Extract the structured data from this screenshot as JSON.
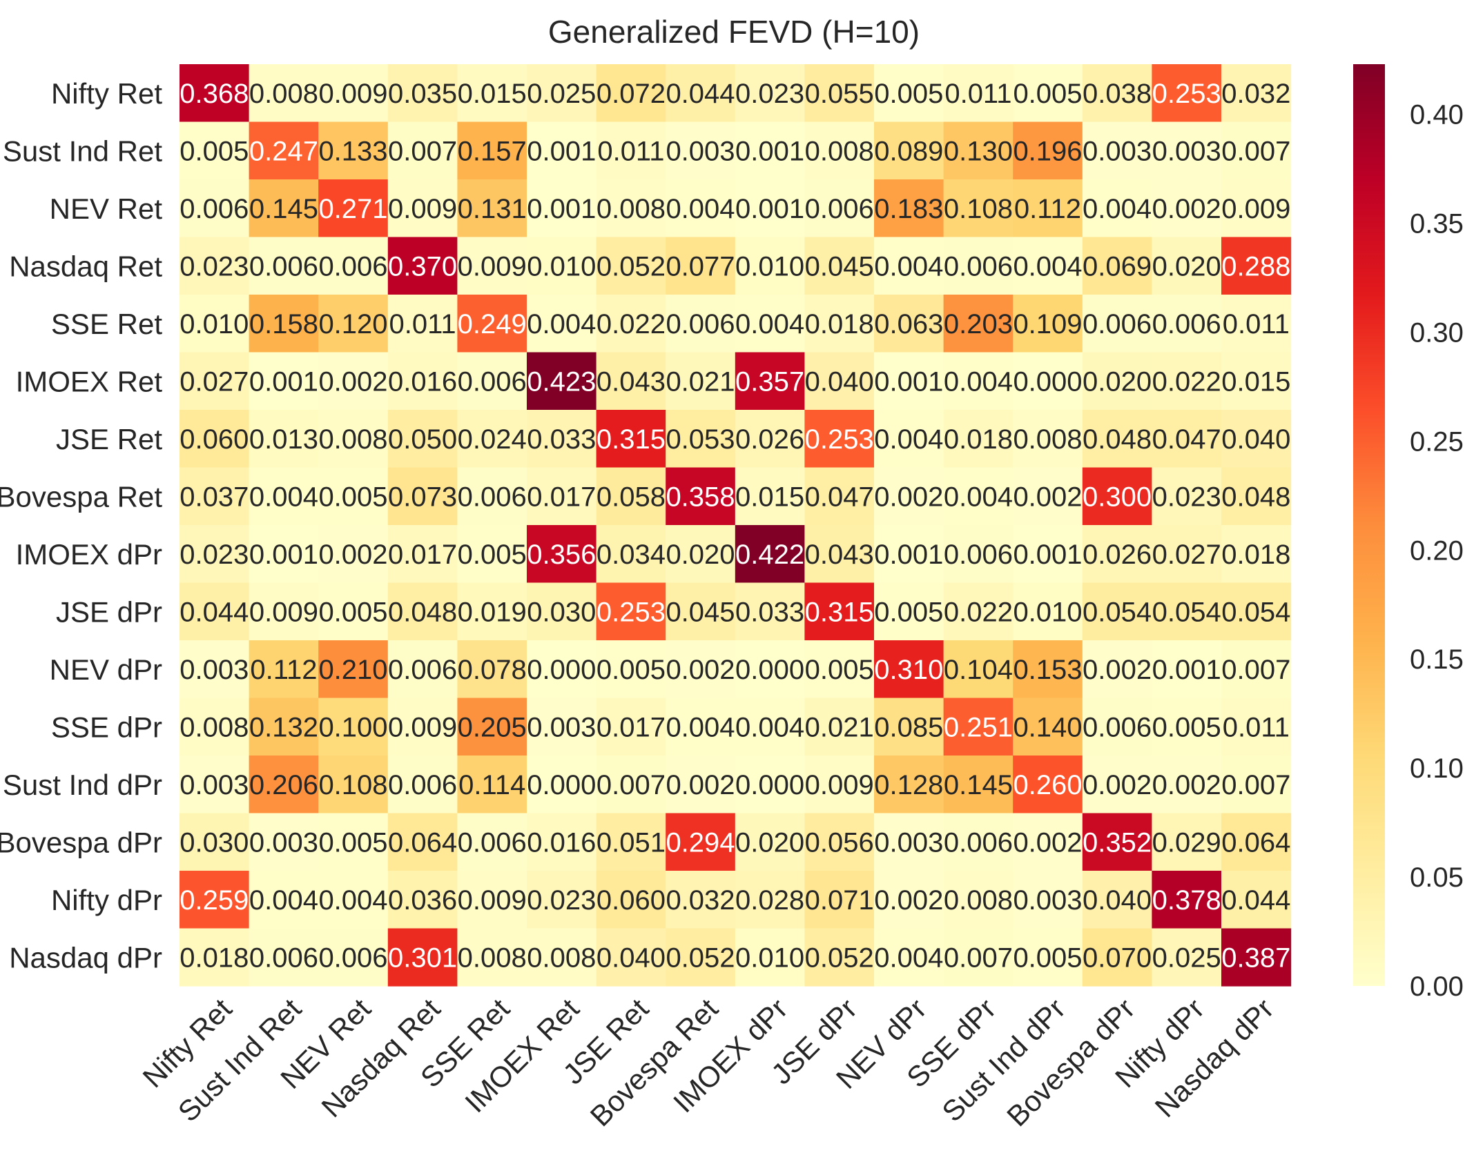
{
  "chart_data": {
    "type": "heatmap",
    "title": "Generalized FEVD (H=10)",
    "xlabel": "",
    "ylabel": "",
    "colormap": "YlOrRd",
    "vmin": 0.0,
    "vmax": 0.423,
    "row_labels": [
      "Nifty Ret",
      "Sust Ind Ret",
      "NEV Ret",
      "Nasdaq Ret",
      "SSE Ret",
      "IMOEX Ret",
      "JSE Ret",
      "Bovespa Ret",
      "IMOEX dPr",
      "JSE dPr",
      "NEV dPr",
      "SSE dPr",
      "Sust Ind dPr",
      "Bovespa dPr",
      "Nifty dPr",
      "Nasdaq dPr"
    ],
    "col_labels": [
      "Nifty Ret",
      "Sust Ind Ret",
      "NEV Ret",
      "Nasdaq Ret",
      "SSE Ret",
      "IMOEX Ret",
      "JSE Ret",
      "Bovespa Ret",
      "IMOEX dPr",
      "JSE dPr",
      "NEV dPr",
      "SSE dPr",
      "Sust Ind dPr",
      "Bovespa dPr",
      "Nifty dPr",
      "Nasdaq dPr"
    ],
    "values": [
      [
        0.368,
        0.008,
        0.009,
        0.035,
        0.015,
        0.025,
        0.072,
        0.044,
        0.023,
        0.055,
        0.005,
        0.011,
        0.005,
        0.038,
        0.253,
        0.032
      ],
      [
        0.005,
        0.247,
        0.133,
        0.007,
        0.157,
        0.001,
        0.011,
        0.003,
        0.001,
        0.008,
        0.089,
        0.13,
        0.196,
        0.003,
        0.003,
        0.007
      ],
      [
        0.006,
        0.145,
        0.271,
        0.009,
        0.131,
        0.001,
        0.008,
        0.004,
        0.001,
        0.006,
        0.183,
        0.108,
        0.112,
        0.004,
        0.002,
        0.009
      ],
      [
        0.023,
        0.006,
        0.006,
        0.37,
        0.009,
        0.01,
        0.052,
        0.077,
        0.01,
        0.045,
        0.004,
        0.006,
        0.004,
        0.069,
        0.02,
        0.288
      ],
      [
        0.01,
        0.158,
        0.12,
        0.011,
        0.249,
        0.004,
        0.022,
        0.006,
        0.004,
        0.018,
        0.063,
        0.203,
        0.109,
        0.006,
        0.006,
        0.011
      ],
      [
        0.027,
        0.001,
        0.002,
        0.016,
        0.006,
        0.423,
        0.043,
        0.021,
        0.357,
        0.04,
        0.001,
        0.004,
        0.0,
        0.02,
        0.022,
        0.015
      ],
      [
        0.06,
        0.013,
        0.008,
        0.05,
        0.024,
        0.033,
        0.315,
        0.053,
        0.026,
        0.253,
        0.004,
        0.018,
        0.008,
        0.048,
        0.047,
        0.04
      ],
      [
        0.037,
        0.004,
        0.005,
        0.073,
        0.006,
        0.017,
        0.058,
        0.358,
        0.015,
        0.047,
        0.002,
        0.004,
        0.002,
        0.3,
        0.023,
        0.048
      ],
      [
        0.023,
        0.001,
        0.002,
        0.017,
        0.005,
        0.356,
        0.034,
        0.02,
        0.422,
        0.043,
        0.001,
        0.006,
        0.001,
        0.026,
        0.027,
        0.018
      ],
      [
        0.044,
        0.009,
        0.005,
        0.048,
        0.019,
        0.03,
        0.253,
        0.045,
        0.033,
        0.315,
        0.005,
        0.022,
        0.01,
        0.054,
        0.054,
        0.054
      ],
      [
        0.003,
        0.112,
        0.21,
        0.006,
        0.078,
        0.0,
        0.005,
        0.002,
        0.0,
        0.005,
        0.31,
        0.104,
        0.153,
        0.002,
        0.001,
        0.007
      ],
      [
        0.008,
        0.132,
        0.1,
        0.009,
        0.205,
        0.003,
        0.017,
        0.004,
        0.004,
        0.021,
        0.085,
        0.251,
        0.14,
        0.006,
        0.005,
        0.011
      ],
      [
        0.003,
        0.206,
        0.108,
        0.006,
        0.114,
        0.0,
        0.007,
        0.002,
        0.0,
        0.009,
        0.128,
        0.145,
        0.26,
        0.002,
        0.002,
        0.007
      ],
      [
        0.03,
        0.003,
        0.005,
        0.064,
        0.006,
        0.016,
        0.051,
        0.294,
        0.02,
        0.056,
        0.003,
        0.006,
        0.002,
        0.352,
        0.029,
        0.064
      ],
      [
        0.259,
        0.004,
        0.004,
        0.036,
        0.009,
        0.023,
        0.06,
        0.032,
        0.028,
        0.071,
        0.002,
        0.008,
        0.003,
        0.04,
        0.378,
        0.044
      ],
      [
        0.018,
        0.006,
        0.006,
        0.301,
        0.008,
        0.008,
        0.04,
        0.052,
        0.01,
        0.052,
        0.004,
        0.007,
        0.005,
        0.07,
        0.025,
        0.387
      ]
    ],
    "colorbar_ticks": [
      0.0,
      0.05,
      0.1,
      0.15,
      0.2,
      0.25,
      0.3,
      0.35,
      0.4
    ],
    "colorbar_tick_labels": [
      "0.00",
      "0.05",
      "0.10",
      "0.15",
      "0.20",
      "0.25",
      "0.30",
      "0.35",
      "0.40"
    ]
  }
}
